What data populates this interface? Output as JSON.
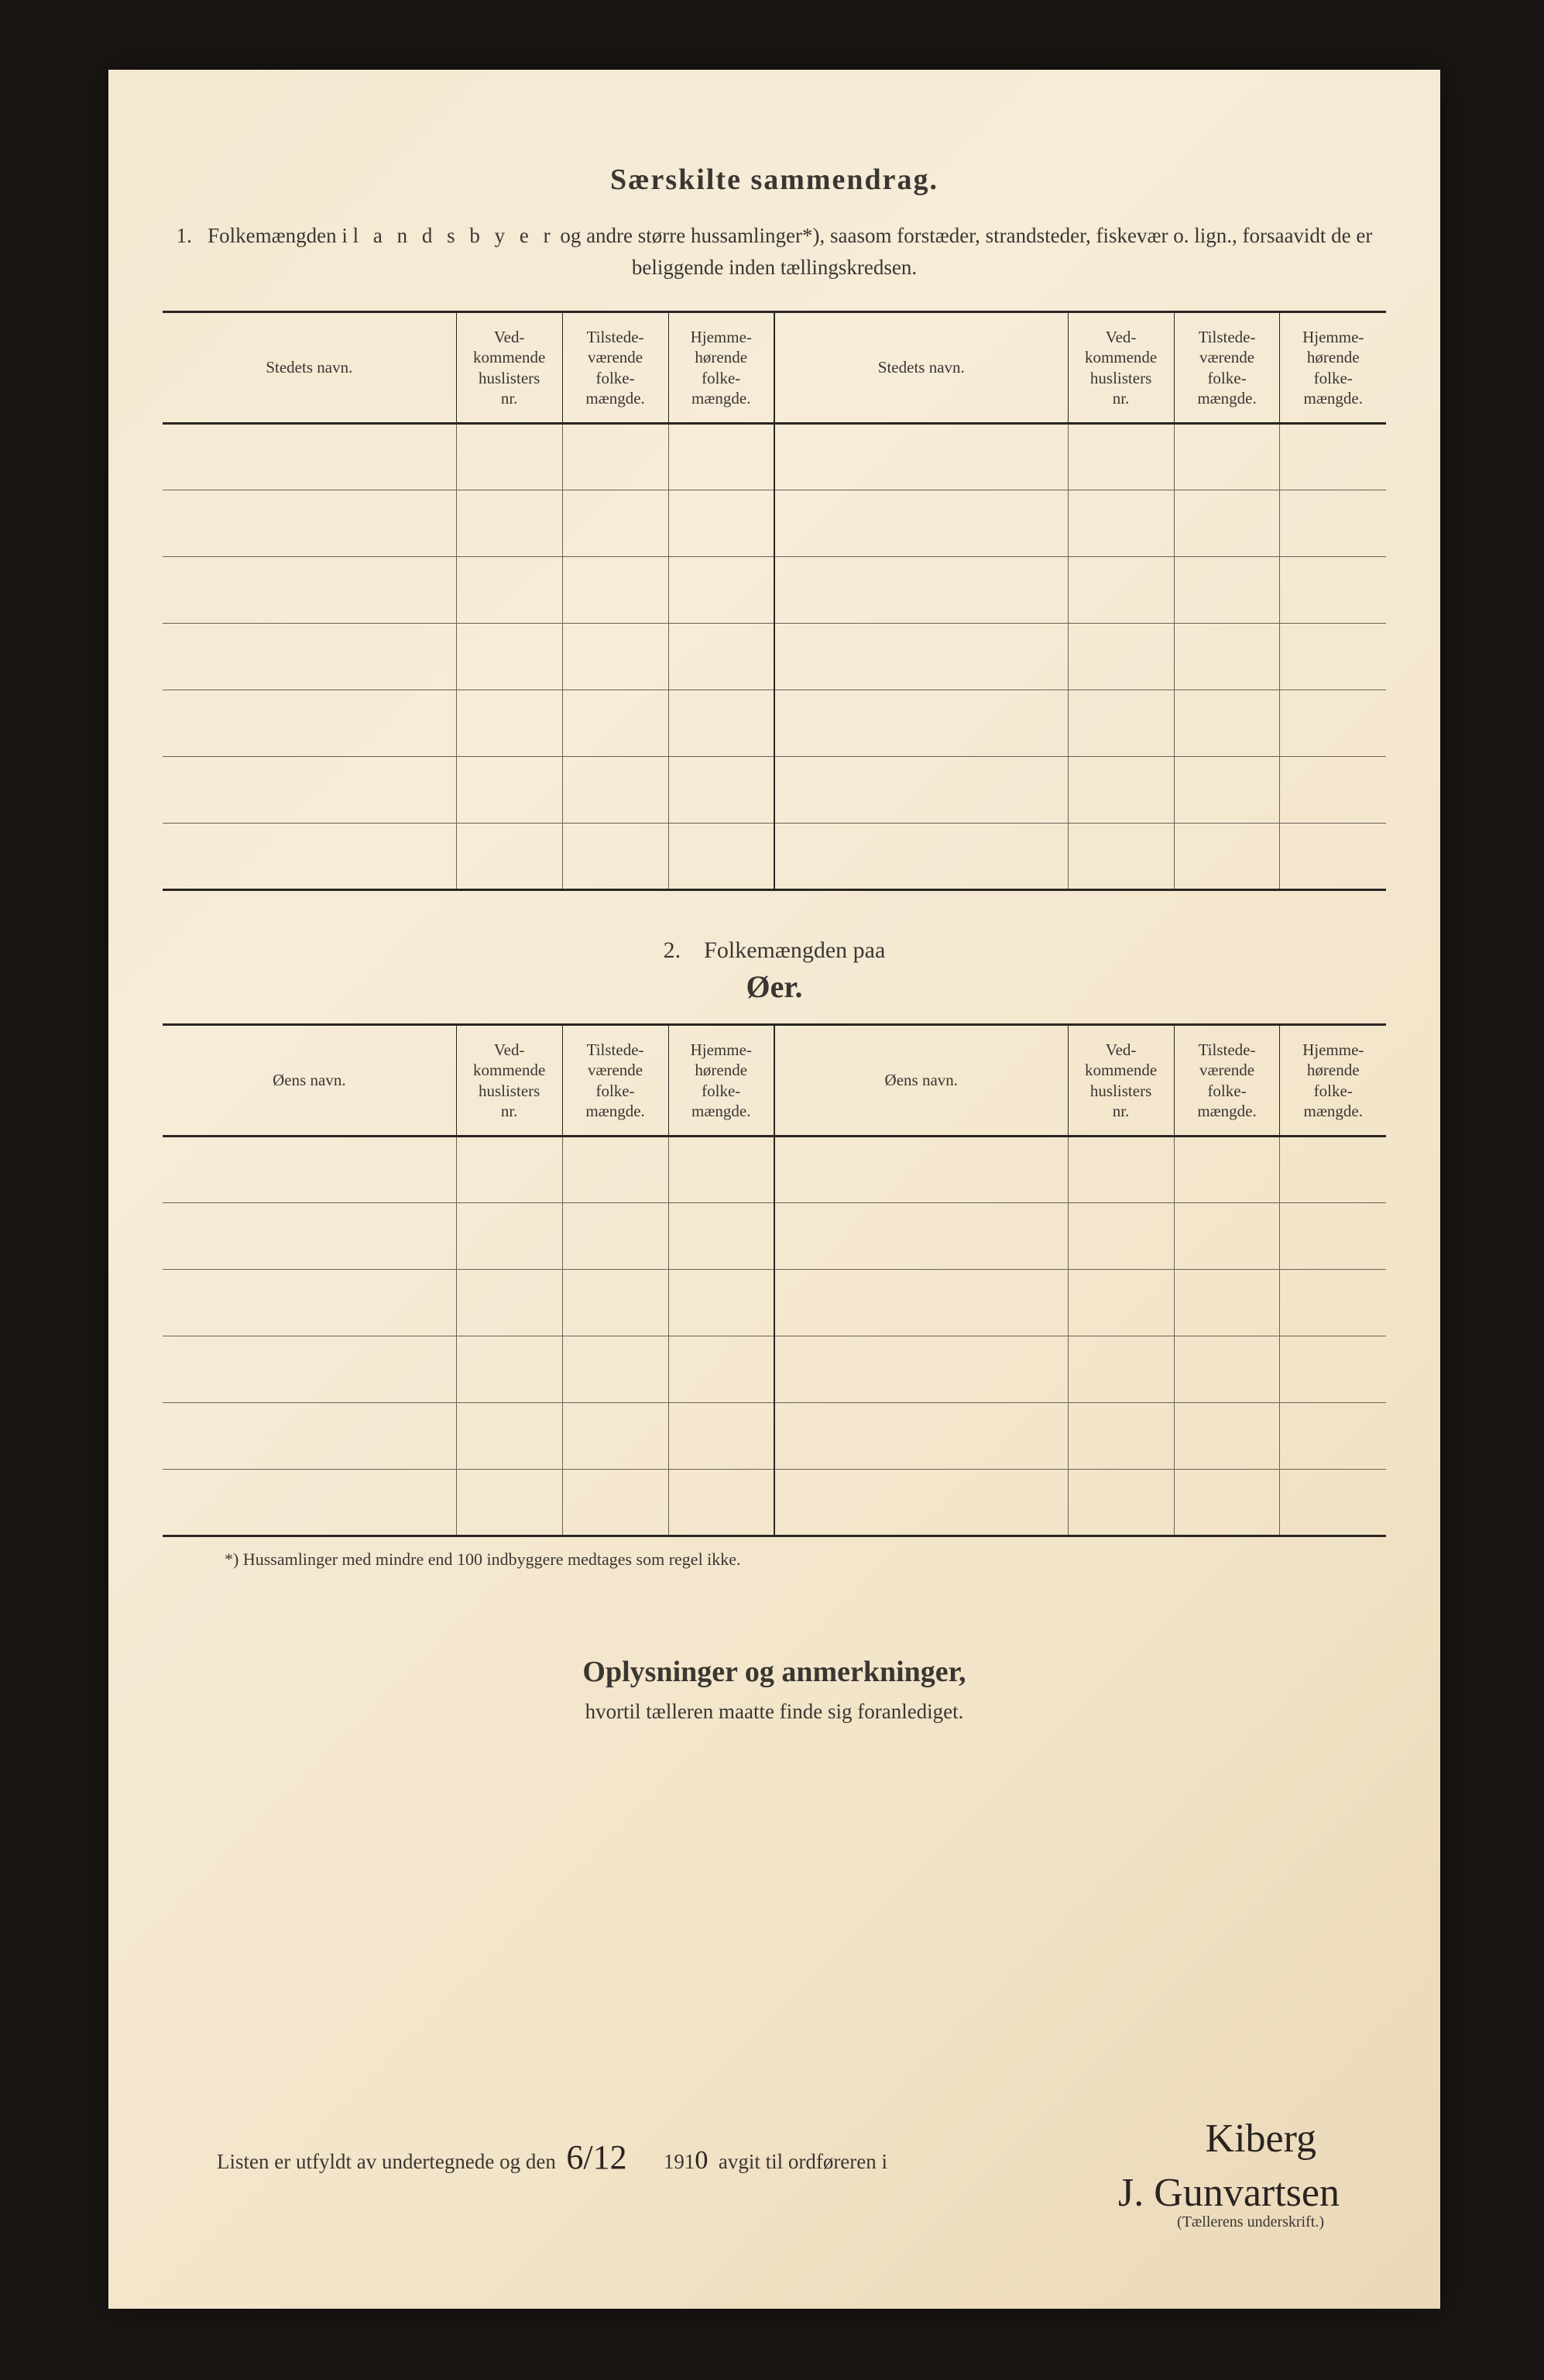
{
  "title": "Særskilte sammendrag.",
  "intro_num": "1.",
  "intro_pre": "Folkemængden i ",
  "intro_spaced": "l a n d s b y e r",
  "intro_post": " og andre større hussamlinger*), saasom forstæder, strandsteder, fiskevær o. lign., forsaavidt de er beliggende inden tællingskredsen.",
  "table1": {
    "headers": {
      "name": "Stedets navn.",
      "c1": "Ved-\nkommende\nhuslisters\nnr.",
      "c2": "Tilstede-\nværende\nfolke-\nmængde.",
      "c3": "Hjemme-\nhørende\nfolke-\nmængde."
    },
    "rows": 7
  },
  "sub_num": "2.",
  "sub_text": "Folkemængden paa",
  "sub_big": "Øer.",
  "table2": {
    "headers": {
      "name": "Øens navn.",
      "c1": "Ved-\nkommende\nhuslisters\nnr.",
      "c2": "Tilstede-\nværende\nfolke-\nmængde.",
      "c3": "Hjemme-\nhørende\nfolke-\nmængde."
    },
    "rows": 6
  },
  "footnote": "*)  Hussamlinger med mindre end 100 indbyggere medtages som regel ikke.",
  "remarks_title": "Oplysninger og anmerkninger,",
  "remarks_sub": "hvortil tælleren maatte finde sig foranlediget.",
  "sign_pre": "Listen er utfyldt av undertegnede og den",
  "sign_date": "6/12",
  "sign_year_pre": "191",
  "sign_year_hw": "0",
  "sign_mid": "avgit til ordføreren i",
  "sign_place": "Kiberg",
  "sign_name": "J. Gunvartsen",
  "sign_caption": "(Tællerens underskrift.)"
}
